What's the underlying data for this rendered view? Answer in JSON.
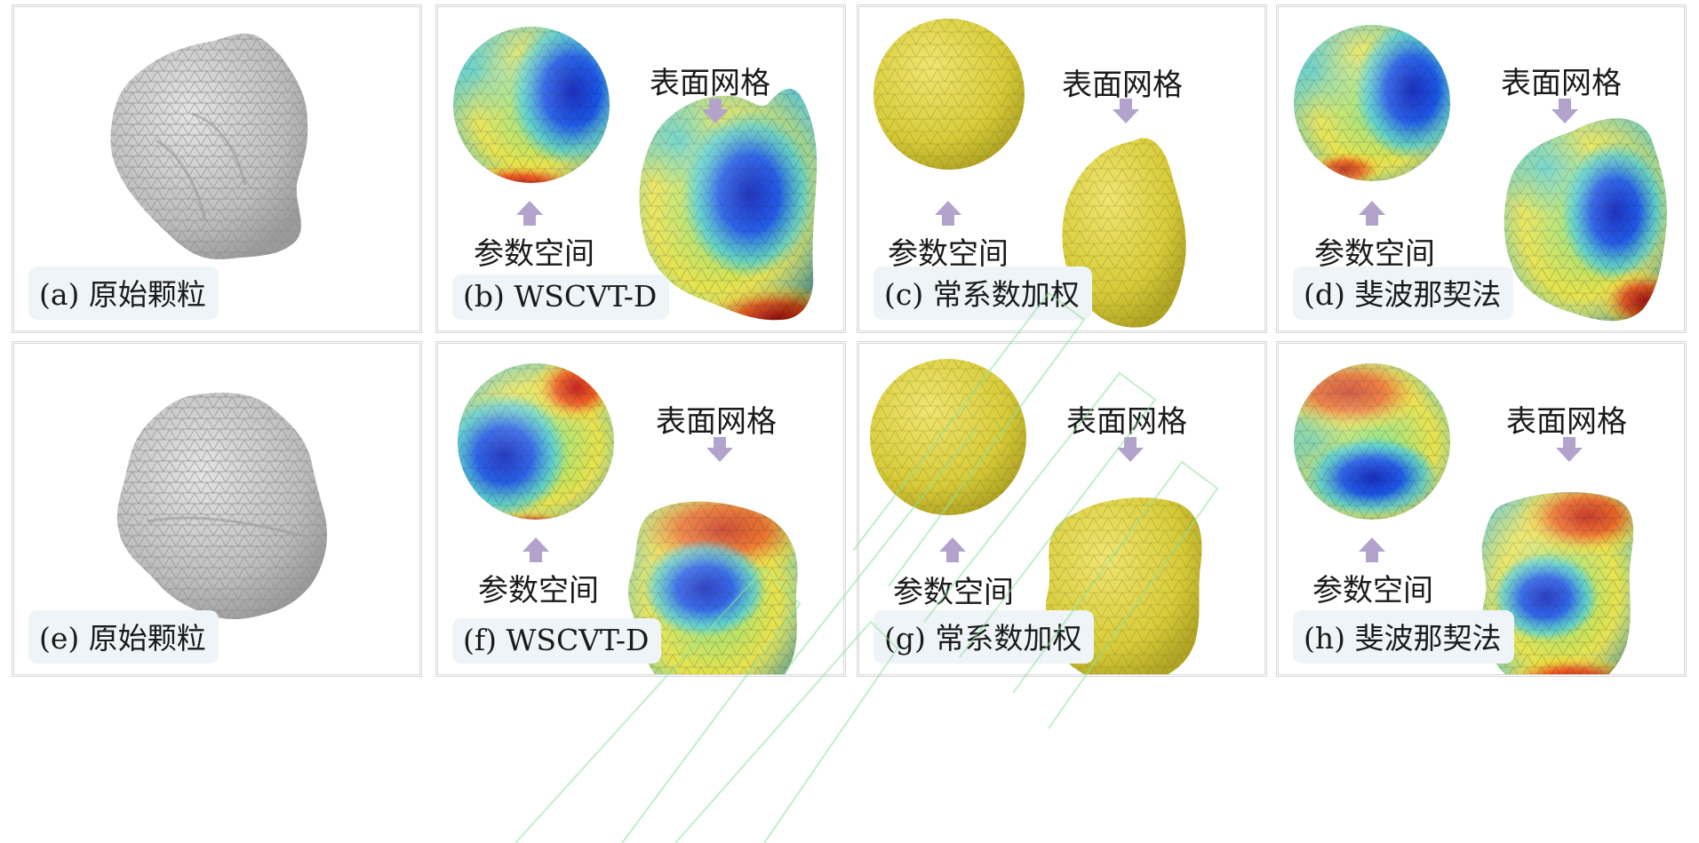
{
  "labels": {
    "surface_mesh": "表面网格",
    "param_space": "参数空间"
  },
  "panels": [
    {
      "id": "a",
      "caption": "(a) 原始颗粒",
      "kind": "original"
    },
    {
      "id": "b",
      "caption": "(b) WSCVT-D",
      "kind": "colored"
    },
    {
      "id": "c",
      "caption": "(c) 常系数加权",
      "kind": "yellow"
    },
    {
      "id": "d",
      "caption": "(d) 斐波那契法",
      "kind": "colored"
    },
    {
      "id": "e",
      "caption": "(e) 原始颗粒",
      "kind": "original"
    },
    {
      "id": "f",
      "caption": "(f) WSCVT-D",
      "kind": "colored"
    },
    {
      "id": "g",
      "caption": "(g) 常系数加权",
      "kind": "yellow"
    },
    {
      "id": "h",
      "caption": "(h) 斐波那契法",
      "kind": "colored"
    }
  ],
  "colors": {
    "gray_particle": "#bdbdbd",
    "yellow_mesh": "#d8cc3a",
    "arrow": "#b3a3cc",
    "caption_bg": "#eef4f8",
    "panel_border": "#d6d6d6",
    "watermark": "#8ee39a"
  }
}
